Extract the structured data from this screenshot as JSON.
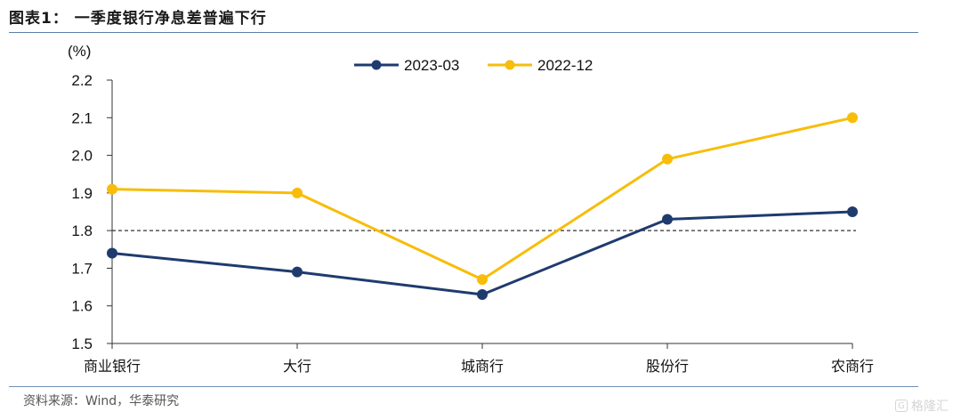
{
  "header": {
    "title": "图表1：  一季度银行净息差普遍下行"
  },
  "footer": {
    "source": "资料来源：Wind，华泰研究",
    "watermark": "格隆汇"
  },
  "colors": {
    "series_2023_03": "#1f3b6e",
    "series_2022_12": "#f7bd0a",
    "reference_line": "#333333",
    "rule": "#5b7fa6"
  },
  "chart_data": {
    "type": "line",
    "title": "",
    "ylabel": "(%)",
    "xlabel": "",
    "ylim": [
      1.5,
      2.2
    ],
    "yticks": [
      "1.5",
      "1.6",
      "1.7",
      "1.8",
      "1.9",
      "2.0",
      "2.1",
      "2.2"
    ],
    "categories": [
      "商业银行",
      "大行",
      "城商行",
      "股份行",
      "农商行"
    ],
    "legend_position": "top-center",
    "grid": false,
    "reference_line": 1.8,
    "series": [
      {
        "name": "2023-03",
        "values": [
          1.74,
          1.69,
          1.63,
          1.83,
          1.85
        ]
      },
      {
        "name": "2022-12",
        "values": [
          1.91,
          1.9,
          1.67,
          1.99,
          2.1
        ]
      }
    ]
  }
}
